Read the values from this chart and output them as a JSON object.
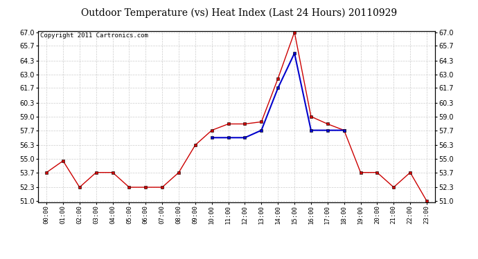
{
  "title": "Outdoor Temperature (vs) Heat Index (Last 24 Hours) 20110929",
  "copyright": "Copyright 2011 Cartronics.com",
  "hours": [
    "00:00",
    "01:00",
    "02:00",
    "03:00",
    "04:00",
    "05:00",
    "06:00",
    "07:00",
    "08:00",
    "09:00",
    "10:00",
    "11:00",
    "12:00",
    "13:00",
    "14:00",
    "15:00",
    "16:00",
    "17:00",
    "18:00",
    "19:00",
    "20:00",
    "21:00",
    "22:00",
    "23:00"
  ],
  "temp": [
    53.7,
    54.8,
    52.3,
    53.7,
    53.7,
    52.3,
    52.3,
    52.3,
    53.7,
    56.3,
    57.7,
    58.3,
    58.3,
    58.5,
    62.6,
    67.0,
    59.0,
    58.3,
    57.7,
    53.7,
    53.7,
    52.3,
    53.7,
    51.0
  ],
  "heat_index": [
    null,
    null,
    null,
    null,
    null,
    null,
    null,
    null,
    null,
    null,
    57.0,
    57.0,
    57.0,
    57.7,
    61.7,
    65.0,
    57.7,
    57.7,
    57.7,
    null,
    null,
    null,
    null,
    null
  ],
  "temp_color": "#cc0000",
  "heat_color": "#0000cc",
  "marker": "s",
  "marker_size": 3,
  "ylim": [
    51.0,
    67.0
  ],
  "yticks": [
    51.0,
    52.3,
    53.7,
    55.0,
    56.3,
    57.7,
    59.0,
    60.3,
    61.7,
    63.0,
    64.3,
    65.7,
    67.0
  ],
  "background_color": "#ffffff",
  "plot_bg": "#ffffff",
  "grid_color": "#cccccc",
  "title_fontsize": 10,
  "copyright_fontsize": 6.5
}
